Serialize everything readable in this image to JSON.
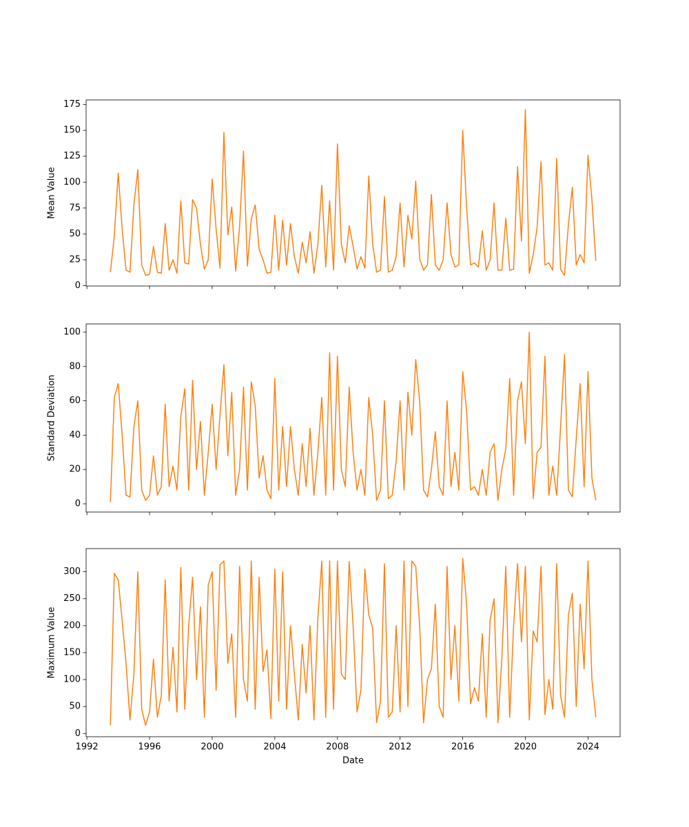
{
  "chart_data": [
    {
      "type": "line",
      "ylabel": "Mean Value",
      "color": "#ff7f0e",
      "x": [
        1993.5,
        1993.75,
        1994,
        1994.25,
        1994.5,
        1994.75,
        1995,
        1995.25,
        1995.5,
        1995.75,
        1996,
        1996.25,
        1996.5,
        1996.75,
        1997,
        1997.25,
        1997.5,
        1997.75,
        1998,
        1998.25,
        1998.5,
        1998.75,
        1999,
        1999.25,
        1999.5,
        1999.75,
        2000,
        2000.25,
        2000.5,
        2000.75,
        2001,
        2001.25,
        2001.5,
        2001.75,
        2002,
        2002.25,
        2002.5,
        2002.75,
        2003,
        2003.25,
        2003.5,
        2003.75,
        2004,
        2004.25,
        2004.5,
        2004.75,
        2005,
        2005.25,
        2005.5,
        2005.75,
        2006,
        2006.25,
        2006.5,
        2006.75,
        2007,
        2007.25,
        2007.5,
        2007.75,
        2008,
        2008.25,
        2008.5,
        2008.75,
        2009,
        2009.25,
        2009.5,
        2009.75,
        2010,
        2010.25,
        2010.5,
        2010.75,
        2011,
        2011.25,
        2011.5,
        2011.75,
        2012,
        2012.25,
        2012.5,
        2012.75,
        2013,
        2013.25,
        2013.5,
        2013.75,
        2014,
        2014.25,
        2014.5,
        2014.75,
        2015,
        2015.25,
        2015.5,
        2015.75,
        2016,
        2016.25,
        2016.5,
        2016.75,
        2017,
        2017.25,
        2017.5,
        2017.75,
        2018,
        2018.25,
        2018.5,
        2018.75,
        2019,
        2019.25,
        2019.5,
        2019.75,
        2020,
        2020.25,
        2020.5,
        2020.75,
        2021,
        2021.25,
        2021.5,
        2021.75,
        2022,
        2022.25,
        2022.5,
        2022.75,
        2023,
        2023.25,
        2023.5,
        2023.75,
        2024,
        2024.25,
        2024.5
      ],
      "values": [
        13,
        48,
        109,
        55,
        15,
        13,
        78,
        112,
        20,
        10,
        11,
        38,
        13,
        12,
        60,
        15,
        25,
        12,
        82,
        22,
        21,
        83,
        75,
        40,
        16,
        25,
        103,
        55,
        17,
        148,
        49,
        76,
        14,
        57,
        130,
        19,
        65,
        78,
        35,
        25,
        12,
        13,
        68,
        15,
        63,
        20,
        60,
        28,
        12,
        42,
        22,
        52,
        12,
        40,
        97,
        18,
        82,
        15,
        137,
        40,
        22,
        58,
        38,
        16,
        28,
        17,
        106,
        40,
        13,
        15,
        86,
        13,
        15,
        28,
        80,
        18,
        68,
        45,
        101,
        26,
        15,
        20,
        88,
        20,
        15,
        25,
        80,
        30,
        18,
        20,
        150,
        75,
        20,
        22,
        18,
        53,
        15,
        25,
        80,
        15,
        15,
        65,
        15,
        16,
        115,
        43,
        170,
        12,
        30,
        56,
        120,
        20,
        22,
        15,
        123,
        16,
        10,
        59,
        95,
        20,
        30,
        22,
        126,
        83,
        24
      ],
      "xlim": [
        1991.95,
        2026.05
      ],
      "xticks": [
        1992,
        1996,
        2000,
        2004,
        2008,
        2012,
        2016,
        2020,
        2024
      ],
      "ylim": [
        -0.3,
        179.4
      ],
      "yticks": [
        0,
        25,
        50,
        75,
        100,
        125,
        150,
        175
      ]
    },
    {
      "type": "line",
      "ylabel": "Standard Deviation",
      "color": "#ff7f0e",
      "x": [
        1993.5,
        1993.75,
        1994,
        1994.25,
        1994.5,
        1994.75,
        1995,
        1995.25,
        1995.5,
        1995.75,
        1996,
        1996.25,
        1996.5,
        1996.75,
        1997,
        1997.25,
        1997.5,
        1997.75,
        1998,
        1998.25,
        1998.5,
        1998.75,
        1999,
        1999.25,
        1999.5,
        1999.75,
        2000,
        2000.25,
        2000.5,
        2000.75,
        2001,
        2001.25,
        2001.5,
        2001.75,
        2002,
        2002.25,
        2002.5,
        2002.75,
        2003,
        2003.25,
        2003.5,
        2003.75,
        2004,
        2004.25,
        2004.5,
        2004.75,
        2005,
        2005.25,
        2005.5,
        2005.75,
        2006,
        2006.25,
        2006.5,
        2006.75,
        2007,
        2007.25,
        2007.5,
        2007.75,
        2008,
        2008.25,
        2008.5,
        2008.75,
        2009,
        2009.25,
        2009.5,
        2009.75,
        2010,
        2010.25,
        2010.5,
        2010.75,
        2011,
        2011.25,
        2011.5,
        2011.75,
        2012,
        2012.25,
        2012.5,
        2012.75,
        2013,
        2013.25,
        2013.5,
        2013.75,
        2014,
        2014.25,
        2014.5,
        2014.75,
        2015,
        2015.25,
        2015.5,
        2015.75,
        2016,
        2016.25,
        2016.5,
        2016.75,
        2017,
        2017.25,
        2017.5,
        2017.75,
        2018,
        2018.25,
        2018.5,
        2018.75,
        2019,
        2019.25,
        2019.5,
        2019.75,
        2020,
        2020.25,
        2020.5,
        2020.75,
        2021,
        2021.25,
        2021.5,
        2021.75,
        2022,
        2022.25,
        2022.5,
        2022.75,
        2023,
        2023.25,
        2023.5,
        2023.75,
        2024,
        2024.25,
        2024.5
      ],
      "values": [
        1,
        62,
        70,
        40,
        5,
        4,
        45,
        60,
        8,
        2,
        5,
        28,
        5,
        10,
        58,
        10,
        22,
        8,
        51,
        67,
        8,
        72,
        20,
        48,
        5,
        30,
        58,
        20,
        52,
        81,
        28,
        65,
        5,
        20,
        68,
        8,
        71,
        57,
        15,
        28,
        8,
        3,
        73,
        8,
        45,
        10,
        45,
        20,
        5,
        35,
        10,
        44,
        5,
        30,
        62,
        5,
        88,
        8,
        86,
        20,
        10,
        68,
        30,
        8,
        20,
        5,
        62,
        40,
        2,
        8,
        60,
        3,
        5,
        25,
        60,
        8,
        65,
        40,
        84,
        60,
        8,
        4,
        20,
        42,
        10,
        5,
        60,
        10,
        30,
        8,
        77,
        54,
        8,
        10,
        5,
        20,
        5,
        30,
        35,
        2,
        20,
        32,
        73,
        5,
        60,
        71,
        35,
        100,
        3,
        30,
        33,
        86,
        5,
        22,
        5,
        45,
        87,
        8,
        4,
        38,
        70,
        10,
        77,
        15,
        2
      ],
      "xlim": [
        1991.95,
        2026.05
      ],
      "xticks": [
        1992,
        1996,
        2000,
        2004,
        2008,
        2012,
        2016,
        2020,
        2024
      ],
      "ylim": [
        -4.8,
        104.8
      ],
      "yticks": [
        0,
        20,
        40,
        60,
        80,
        100
      ]
    },
    {
      "type": "line",
      "ylabel": "Maximum Value",
      "xlabel": "Date",
      "color": "#ff7f0e",
      "x": [
        1993.5,
        1993.75,
        1994,
        1994.25,
        1994.5,
        1994.75,
        1995,
        1995.25,
        1995.5,
        1995.75,
        1996,
        1996.25,
        1996.5,
        1996.75,
        1997,
        1997.25,
        1997.5,
        1997.75,
        1998,
        1998.25,
        1998.5,
        1998.75,
        1999,
        1999.25,
        1999.5,
        1999.75,
        2000,
        2000.25,
        2000.5,
        2000.75,
        2001,
        2001.25,
        2001.5,
        2001.75,
        2002,
        2002.25,
        2002.5,
        2002.75,
        2003,
        2003.25,
        2003.5,
        2003.75,
        2004,
        2004.25,
        2004.5,
        2004.75,
        2005,
        2005.25,
        2005.5,
        2005.75,
        2006,
        2006.25,
        2006.5,
        2006.75,
        2007,
        2007.25,
        2007.5,
        2007.75,
        2008,
        2008.25,
        2008.5,
        2008.75,
        2009,
        2009.25,
        2009.5,
        2009.75,
        2010,
        2010.25,
        2010.5,
        2010.75,
        2011,
        2011.25,
        2011.5,
        2011.75,
        2012,
        2012.25,
        2012.5,
        2012.75,
        2013,
        2013.25,
        2013.5,
        2013.75,
        2014,
        2014.25,
        2014.5,
        2014.75,
        2015,
        2015.25,
        2015.5,
        2015.75,
        2016,
        2016.25,
        2016.5,
        2016.75,
        2017,
        2017.25,
        2017.5,
        2017.75,
        2018,
        2018.25,
        2018.5,
        2018.75,
        2019,
        2019.25,
        2019.5,
        2019.75,
        2020,
        2020.25,
        2020.5,
        2020.75,
        2021,
        2021.25,
        2021.5,
        2021.75,
        2022,
        2022.25,
        2022.5,
        2022.75,
        2023,
        2023.25,
        2023.5,
        2023.75,
        2024,
        2024.25,
        2024.5
      ],
      "values": [
        15,
        297,
        285,
        210,
        130,
        25,
        110,
        300,
        45,
        15,
        40,
        138,
        30,
        70,
        285,
        60,
        160,
        40,
        308,
        45,
        200,
        290,
        100,
        235,
        30,
        275,
        300,
        80,
        313,
        320,
        130,
        185,
        30,
        310,
        100,
        60,
        320,
        45,
        290,
        115,
        155,
        28,
        305,
        60,
        300,
        45,
        200,
        110,
        25,
        165,
        75,
        200,
        25,
        215,
        320,
        30,
        320,
        45,
        320,
        110,
        100,
        319,
        200,
        40,
        80,
        305,
        220,
        195,
        20,
        60,
        315,
        30,
        40,
        200,
        40,
        320,
        50,
        320,
        310,
        200,
        20,
        100,
        120,
        240,
        50,
        30,
        310,
        100,
        200,
        60,
        325,
        240,
        55,
        85,
        60,
        185,
        30,
        210,
        250,
        20,
        140,
        310,
        30,
        200,
        315,
        170,
        310,
        25,
        190,
        170,
        310,
        35,
        100,
        45,
        315,
        70,
        30,
        220,
        260,
        50,
        240,
        120,
        320,
        100,
        30
      ],
      "xlim": [
        1991.95,
        2026.05
      ],
      "xticks": [
        1992,
        1996,
        2000,
        2004,
        2008,
        2012,
        2016,
        2020,
        2024
      ],
      "ylim": [
        -6,
        343
      ],
      "yticks": [
        0,
        50,
        100,
        150,
        200,
        250,
        300
      ]
    }
  ]
}
